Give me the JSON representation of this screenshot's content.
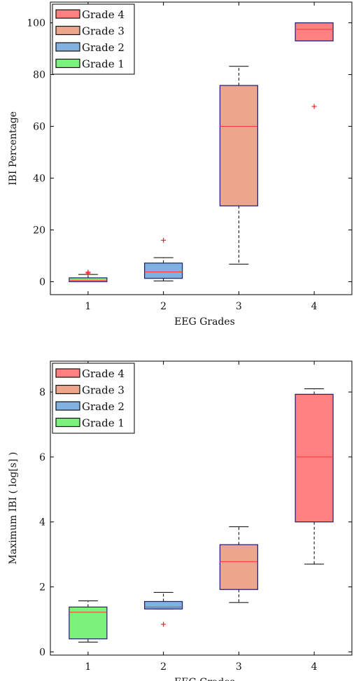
{
  "chart_data": [
    {
      "type": "box",
      "title": "",
      "xlabel": "EEG Grades",
      "ylabel": "IBI Percentage",
      "categories": [
        "1",
        "2",
        "3",
        "4"
      ],
      "xlim": [
        0.5,
        4.5
      ],
      "ylim": [
        -5,
        108
      ],
      "yticks": [
        0,
        20,
        40,
        60,
        80,
        100
      ],
      "legend_position": "top-left",
      "legend": [
        "Grade 4",
        "Grade 3",
        "Grade 2",
        "Grade 1"
      ],
      "colors": [
        "#7bf27b",
        "#7fb2e0",
        "#eba68b",
        "#ff8080"
      ],
      "median_color": "#ff3333",
      "outlier_color": "#e8262b",
      "box_edge_color": "#1c1c6b",
      "boxes": [
        {
          "grade": "Grade 1",
          "x": 1,
          "whisker_low": 0,
          "q1": 0,
          "median": 0.5,
          "q3": 1.5,
          "whisker_high": 2.8,
          "outliers": [
            3.3,
            3.7
          ]
        },
        {
          "grade": "Grade 2",
          "x": 2,
          "whisker_low": 0.3,
          "q1": 1.3,
          "median": 3.8,
          "q3": 7.2,
          "whisker_high": 9.3,
          "outliers": [
            16
          ]
        },
        {
          "grade": "Grade 3",
          "x": 3,
          "whisker_low": 6.8,
          "q1": 29.3,
          "median": 60,
          "q3": 75.8,
          "whisker_high": 83.2,
          "outliers": []
        },
        {
          "grade": "Grade 4",
          "x": 4,
          "whisker_low": 93,
          "q1": 93,
          "median": 97.5,
          "q3": 100,
          "whisker_high": 100,
          "outliers": [
            67.7
          ]
        }
      ]
    },
    {
      "type": "box",
      "title": "",
      "xlabel": "EEG Grades",
      "ylabel": "Maximum IBI ( log[s] )",
      "categories": [
        "1",
        "2",
        "3",
        "4"
      ],
      "xlim": [
        0.5,
        4.5
      ],
      "ylim": [
        -0.1,
        8.95
      ],
      "yticks": [
        0,
        2,
        4,
        6,
        8
      ],
      "legend_position": "top-left",
      "legend": [
        "Grade 4",
        "Grade 3",
        "Grade 2",
        "Grade 1"
      ],
      "colors": [
        "#7bf27b",
        "#7fb2e0",
        "#eba68b",
        "#ff8080"
      ],
      "median_color": "#ff3333",
      "outlier_color": "#e8262b",
      "box_edge_color": "#1c1c6b",
      "boxes": [
        {
          "grade": "Grade 1",
          "x": 1,
          "whisker_low": 0.3,
          "q1": 0.4,
          "median": 1.22,
          "q3": 1.38,
          "whisker_high": 1.57,
          "outliers": []
        },
        {
          "grade": "Grade 2",
          "x": 2,
          "whisker_low": 1.32,
          "q1": 1.32,
          "median": 1.38,
          "q3": 1.55,
          "whisker_high": 1.83,
          "outliers": [
            0.85
          ]
        },
        {
          "grade": "Grade 3",
          "x": 3,
          "whisker_low": 1.52,
          "q1": 1.92,
          "median": 2.78,
          "q3": 3.3,
          "whisker_high": 3.85,
          "outliers": []
        },
        {
          "grade": "Grade 4",
          "x": 4,
          "whisker_low": 2.7,
          "q1": 4.0,
          "median": 6.0,
          "q3": 7.93,
          "whisker_high": 8.1,
          "outliers": []
        }
      ]
    }
  ]
}
